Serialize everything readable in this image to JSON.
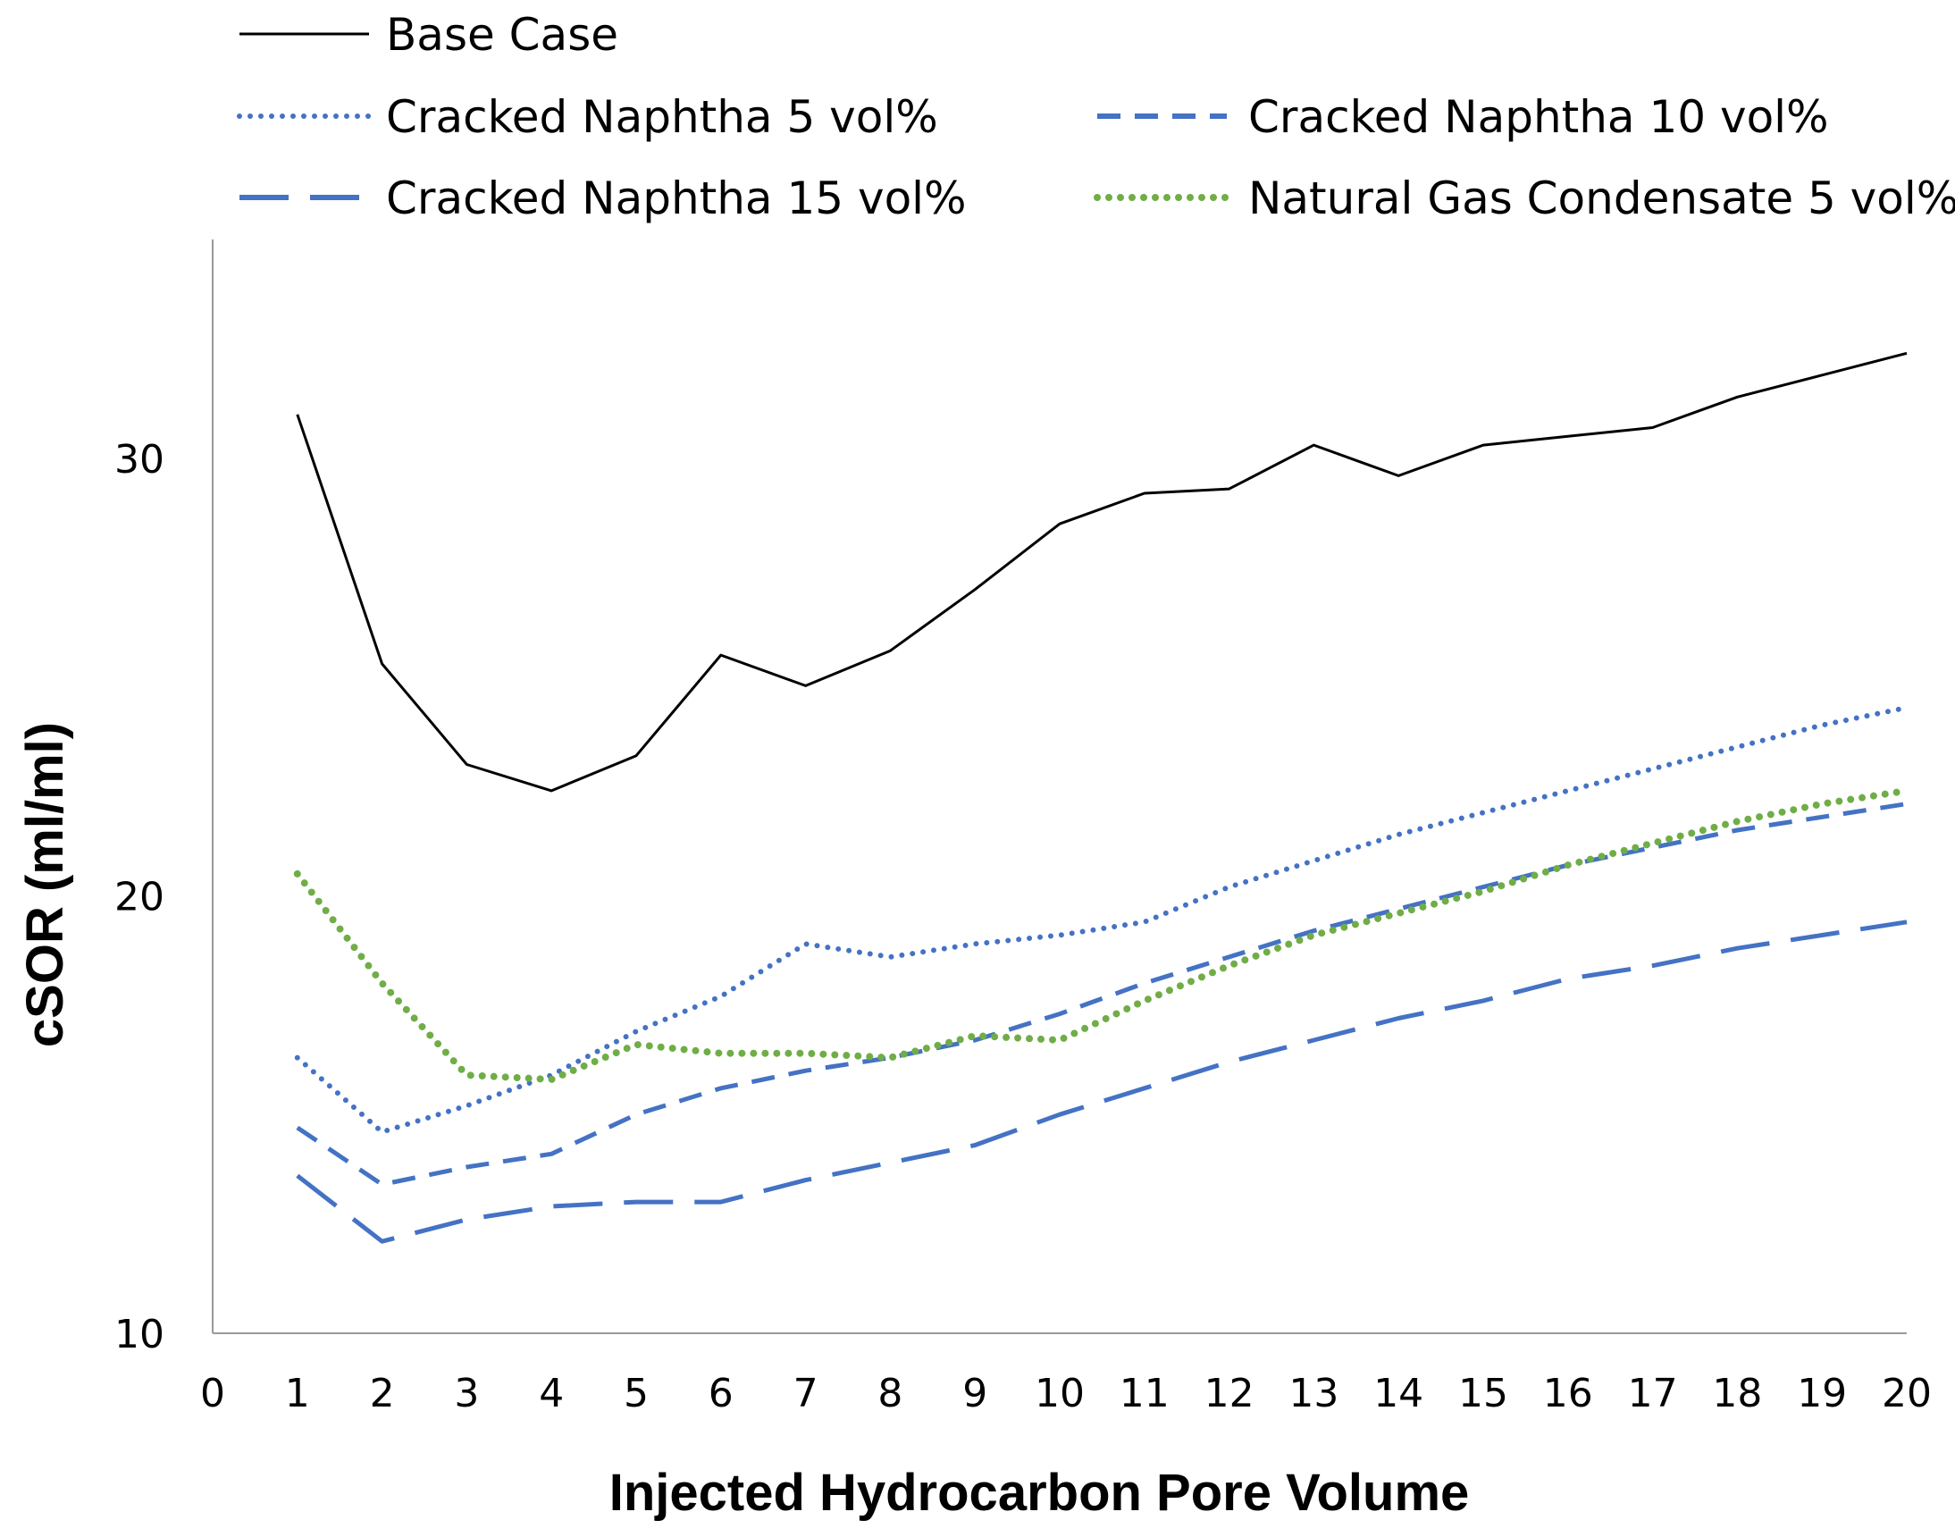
{
  "chart_data": {
    "type": "line",
    "title": "",
    "xlabel": "Injected Hydrocarbon Pore Volume",
    "ylabel": "cSOR (ml/ml)",
    "xlim": [
      0,
      20
    ],
    "ylim": [
      10,
      35
    ],
    "x_ticks": [
      "0",
      "1",
      "2",
      "3",
      "4",
      "5",
      "6",
      "7",
      "8",
      "9",
      "10",
      "11",
      "12",
      "13",
      "14",
      "15",
      "16",
      "17",
      "18",
      "19",
      "20"
    ],
    "y_ticks": [
      "10",
      "20",
      "30"
    ],
    "grid": false,
    "legend_position": "top",
    "x": [
      1,
      2,
      3,
      4,
      5,
      6,
      7,
      8,
      9,
      10,
      11,
      12,
      13,
      14,
      15,
      16,
      17,
      18,
      19,
      20
    ],
    "series": [
      {
        "name": "Base Case",
        "color": "#000000",
        "style": "solid",
        "values": [
          31.0,
          25.3,
          23.0,
          22.4,
          23.2,
          25.5,
          24.8,
          25.6,
          27.0,
          28.5,
          29.2,
          29.3,
          30.3,
          29.6,
          30.3,
          30.5,
          30.7,
          31.4,
          31.9,
          32.4
        ]
      },
      {
        "name": "Cracked Naphtha 5 vol%",
        "color": "#4472C4",
        "style": "dotted",
        "values": [
          16.3,
          14.6,
          15.2,
          15.9,
          16.9,
          17.7,
          18.9,
          18.6,
          18.9,
          19.1,
          19.4,
          20.2,
          20.8,
          21.4,
          21.9,
          22.4,
          22.9,
          23.4,
          23.9,
          24.3
        ]
      },
      {
        "name": "Cracked Naphtha 10 vol%",
        "color": "#4472C4",
        "style": "dash",
        "values": [
          14.7,
          13.4,
          13.8,
          14.1,
          15.0,
          15.6,
          16.0,
          16.3,
          16.7,
          17.3,
          18.0,
          18.6,
          19.2,
          19.7,
          20.2,
          20.7,
          21.1,
          21.5,
          21.8,
          22.1
        ]
      },
      {
        "name": "Cracked Naphtha 15 vol%",
        "color": "#4472C4",
        "style": "longdash",
        "values": [
          13.6,
          12.1,
          12.6,
          12.9,
          13.0,
          13.0,
          13.5,
          13.9,
          14.3,
          15.0,
          15.6,
          16.2,
          16.7,
          17.2,
          17.6,
          18.1,
          18.4,
          18.8,
          19.1,
          19.4
        ]
      },
      {
        "name": "Natural Gas Condensate 5 vol%",
        "color": "#70AD47",
        "style": "dotted",
        "values": [
          20.5,
          18.0,
          15.9,
          15.8,
          16.6,
          16.4,
          16.4,
          16.3,
          16.8,
          16.7,
          17.6,
          18.4,
          19.1,
          19.6,
          20.1,
          20.7,
          21.2,
          21.7,
          22.1,
          22.4
        ]
      }
    ]
  }
}
